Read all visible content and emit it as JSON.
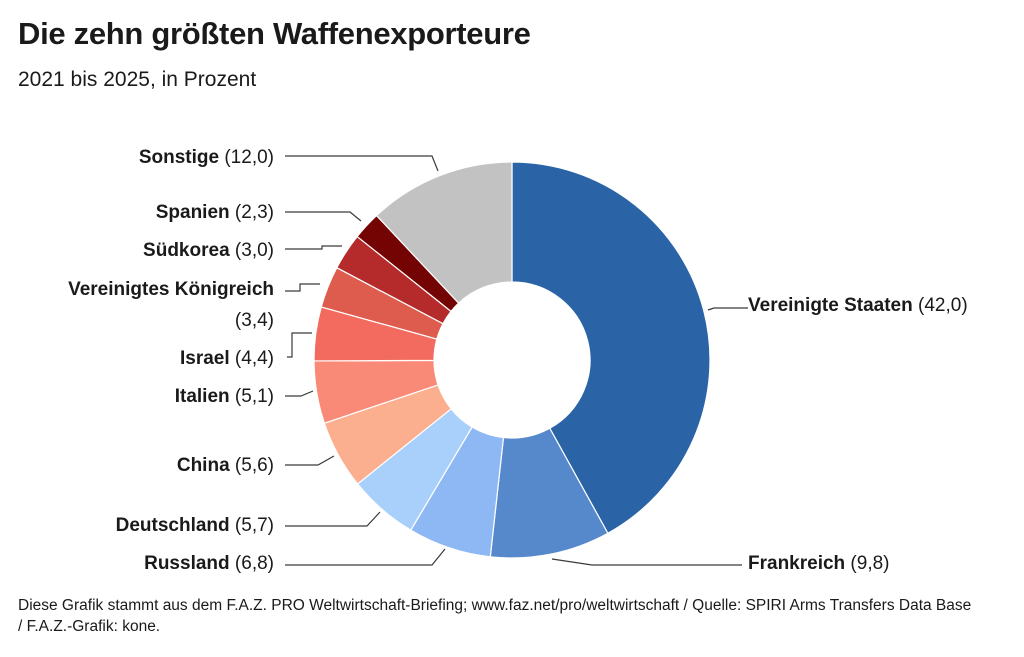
{
  "header": {
    "title": "Die zehn größten Waffenexporteure",
    "subtitle": "2021 bis 2025, in Prozent"
  },
  "footer": {
    "note": "Diese Grafik stammt aus dem F.A.Z. PRO Weltwirtschaft-Briefing; www.faz.net/pro/weltwirtschaft / Quelle: SPIRI Arms Transfers Data Base / F.A.Z.-Grafik: kone."
  },
  "chart_data": {
    "type": "pie",
    "variant": "donut",
    "title": "Die zehn größten Waffenexporteure",
    "subtitle": "2021 bis 2025, in Prozent",
    "unit": "%",
    "slices": [
      {
        "name": "Vereinigte Staaten",
        "value": 42.0,
        "value_label": "(42,0)",
        "color": "#2a64a6"
      },
      {
        "name": "Frankreich",
        "value": 9.8,
        "value_label": "(9,8)",
        "color": "#5688cc"
      },
      {
        "name": "Russland",
        "value": 6.8,
        "value_label": "(6,8)",
        "color": "#8db8f4"
      },
      {
        "name": "Deutschland",
        "value": 5.7,
        "value_label": "(5,7)",
        "color": "#a9d0fb"
      },
      {
        "name": "China",
        "value": 5.6,
        "value_label": "(5,6)",
        "color": "#fcaf8e"
      },
      {
        "name": "Italien",
        "value": 5.1,
        "value_label": "(5,1)",
        "color": "#fa8a78"
      },
      {
        "name": "Israel",
        "value": 4.4,
        "value_label": "(4,4)",
        "color": "#f26b5e"
      },
      {
        "name": "Vereinigtes Königreich",
        "value": 3.4,
        "value_label": "(3,4)",
        "color": "#dd5c4e"
      },
      {
        "name": "Südkorea",
        "value": 3.0,
        "value_label": "(3,0)",
        "color": "#b52a2a"
      },
      {
        "name": "Spanien",
        "value": 2.3,
        "value_label": "(2,3)",
        "color": "#740303"
      },
      {
        "name": "Sonstige",
        "value": 12.0,
        "value_label": "(12,0)",
        "color": "#c2c2c2"
      }
    ]
  }
}
